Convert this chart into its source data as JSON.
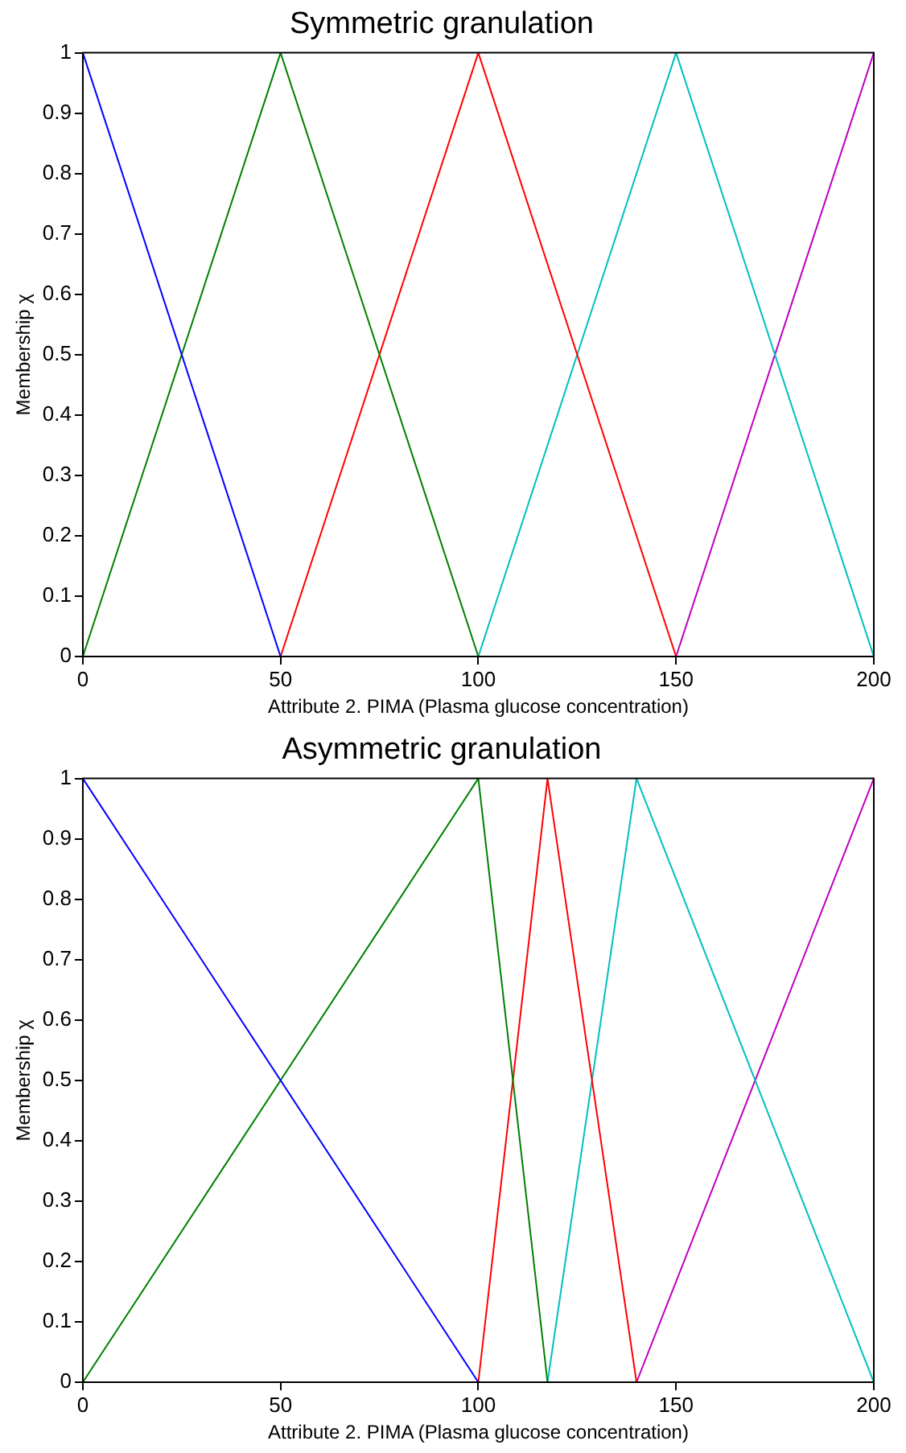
{
  "chart_data": [
    {
      "type": "line",
      "title": "Symmetric granulation",
      "xlabel": "Attribute 2. PIMA (Plasma glucose concentration)",
      "ylabel": "Membership χ",
      "xlim": [
        0,
        200
      ],
      "xticks": [
        0,
        50,
        100,
        150,
        200
      ],
      "ylim": [
        0,
        1
      ],
      "yticks": [
        0,
        0.1,
        0.2,
        0.3,
        0.4,
        0.5,
        0.6,
        0.7,
        0.8,
        0.9,
        1
      ],
      "grid": false,
      "legend": false,
      "marker": "none",
      "series": [
        {
          "color": "#0000ff",
          "x": [
            0,
            50
          ],
          "values": [
            1,
            0
          ]
        },
        {
          "color": "#008000",
          "x": [
            0,
            50,
            100
          ],
          "values": [
            0,
            1,
            0
          ]
        },
        {
          "color": "#ff0000",
          "x": [
            50,
            100,
            150
          ],
          "values": [
            0,
            1,
            0
          ]
        },
        {
          "color": "#00bfbf",
          "x": [
            100,
            150,
            200
          ],
          "values": [
            0,
            1,
            0
          ]
        },
        {
          "color": "#bf00bf",
          "x": [
            150,
            200
          ],
          "values": [
            0,
            1
          ]
        }
      ]
    },
    {
      "type": "line",
      "title": "Asymmetric granulation",
      "xlabel": "Attribute 2. PIMA (Plasma glucose concentration)",
      "ylabel": "Membership χ",
      "xlim": [
        0,
        200
      ],
      "xticks": [
        0,
        50,
        100,
        150,
        200
      ],
      "ylim": [
        0,
        1
      ],
      "yticks": [
        0,
        0.1,
        0.2,
        0.3,
        0.4,
        0.5,
        0.6,
        0.7,
        0.8,
        0.9,
        1
      ],
      "grid": false,
      "legend": false,
      "marker": "none",
      "series": [
        {
          "color": "#0000ff",
          "x": [
            0,
            100
          ],
          "values": [
            1,
            0
          ]
        },
        {
          "color": "#008000",
          "x": [
            0,
            100,
            117.5
          ],
          "values": [
            0,
            1,
            0
          ]
        },
        {
          "color": "#ff0000",
          "x": [
            100,
            117.5,
            140
          ],
          "values": [
            0,
            1,
            0
          ]
        },
        {
          "color": "#00bfbf",
          "x": [
            117.5,
            140,
            200
          ],
          "values": [
            0,
            1,
            0
          ]
        },
        {
          "color": "#bf00bf",
          "x": [
            140,
            200
          ],
          "values": [
            0,
            1
          ]
        }
      ]
    }
  ]
}
